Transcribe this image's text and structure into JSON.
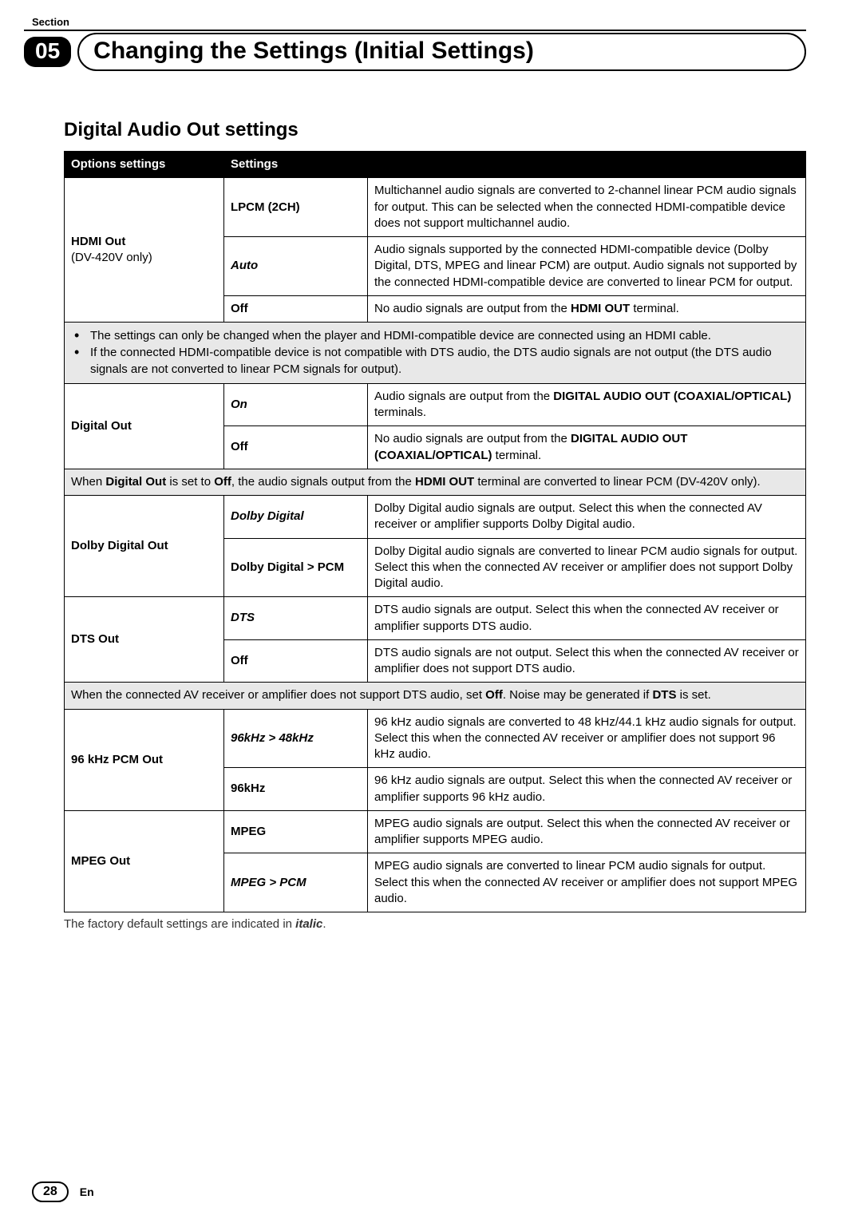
{
  "section_label": "Section",
  "section_number": "05",
  "chapter_title": "Changing the Settings (Initial Settings)",
  "subtitle_prefix": "Digital Audio Out ",
  "subtitle_suffix": "settings",
  "table": {
    "headers": [
      "Options settings",
      "Settings"
    ],
    "groups": [
      {
        "option": "HDMI Out",
        "option_sub": "(DV-420V only)",
        "rows": [
          {
            "setting": "LPCM (2CH)",
            "style": "bold",
            "desc_html": "Multichannel audio signals are converted to 2-channel linear PCM audio signals for output. This can be selected when the connected HDMI-compatible device does not support multichannel audio."
          },
          {
            "setting": "Auto",
            "style": "italic",
            "desc_html": "Audio signals supported by the connected HDMI-compatible device (Dolby Digital, DTS, MPEG and linear PCM) are output. Audio signals not supported by the connected HDMI-compatible device are converted to linear PCM for output."
          },
          {
            "setting": "Off",
            "style": "bold",
            "desc_html": "No audio signals are output from the <b>HDMI OUT</b> terminal."
          }
        ],
        "note_items": [
          "The settings can only be changed when the player and HDMI-compatible device are connected using an HDMI cable.",
          "If the connected HDMI-compatible device is not compatible with DTS audio, the DTS audio signals are not output (the DTS audio signals are not converted to linear PCM signals for output)."
        ]
      },
      {
        "option": "Digital Out",
        "rows": [
          {
            "setting": "On",
            "style": "italic",
            "desc_html": "Audio signals are output from the <b>DIGITAL AUDIO OUT (COAXIAL/OPTICAL)</b> terminals."
          },
          {
            "setting": "Off",
            "style": "bold",
            "desc_html": "No audio signals are output from the <b>DIGITAL AUDIO OUT (COAXIAL/OPTICAL)</b> terminal."
          }
        ],
        "note_html": "When <b>Digital Out</b> is set to <b>Off</b>, the audio signals output from the <b>HDMI OUT</b> terminal are converted to linear PCM (DV-420V only)."
      },
      {
        "option": "Dolby Digital Out",
        "rows": [
          {
            "setting": "Dolby Digital",
            "style": "italic",
            "desc_html": "Dolby Digital audio signals are output. Select this when the connected AV receiver or amplifier supports Dolby Digital audio."
          },
          {
            "setting": "Dolby Digital > PCM",
            "style": "bold",
            "desc_html": "Dolby Digital audio signals are converted to linear PCM audio signals for output. Select this when the connected AV receiver or amplifier does not support Dolby Digital audio."
          }
        ]
      },
      {
        "option": "DTS Out",
        "rows": [
          {
            "setting": "DTS",
            "style": "italic",
            "desc_html": "DTS audio signals are output. Select this when the connected AV receiver or amplifier supports DTS audio."
          },
          {
            "setting": "Off",
            "style": "bold",
            "desc_html": "DTS audio signals are not output. Select this when the connected AV receiver or amplifier does not support DTS audio."
          }
        ],
        "note_html": "When the connected AV receiver or amplifier does not support DTS audio, set <b>Off</b>. Noise may be generated if <b>DTS</b> is set."
      },
      {
        "option": "96 kHz PCM Out",
        "rows": [
          {
            "setting": "96kHz > 48kHz",
            "style": "italic",
            "desc_html": "96 kHz audio signals are converted to 48 kHz/44.1 kHz audio signals for output. Select this when the connected AV receiver or amplifier does not support 96 kHz audio."
          },
          {
            "setting": "96kHz",
            "style": "bold",
            "desc_html": "96 kHz audio signals are output. Select this when the connected AV receiver or amplifier supports 96 kHz audio."
          }
        ]
      },
      {
        "option": "MPEG Out",
        "rows": [
          {
            "setting": "MPEG",
            "style": "bold",
            "desc_html": "MPEG audio signals are output. Select this when the connected AV receiver or amplifier supports MPEG audio."
          },
          {
            "setting": "MPEG > PCM",
            "style": "italic",
            "desc_html": "MPEG audio signals are converted to linear PCM audio signals for output. Select this when the connected AV receiver or amplifier does not support MPEG audio."
          }
        ]
      }
    ]
  },
  "footnote_prefix": "The factory default settings are indicated in ",
  "footnote_italic": "italic",
  "footnote_suffix": ".",
  "page_number": "28",
  "lang": "En"
}
